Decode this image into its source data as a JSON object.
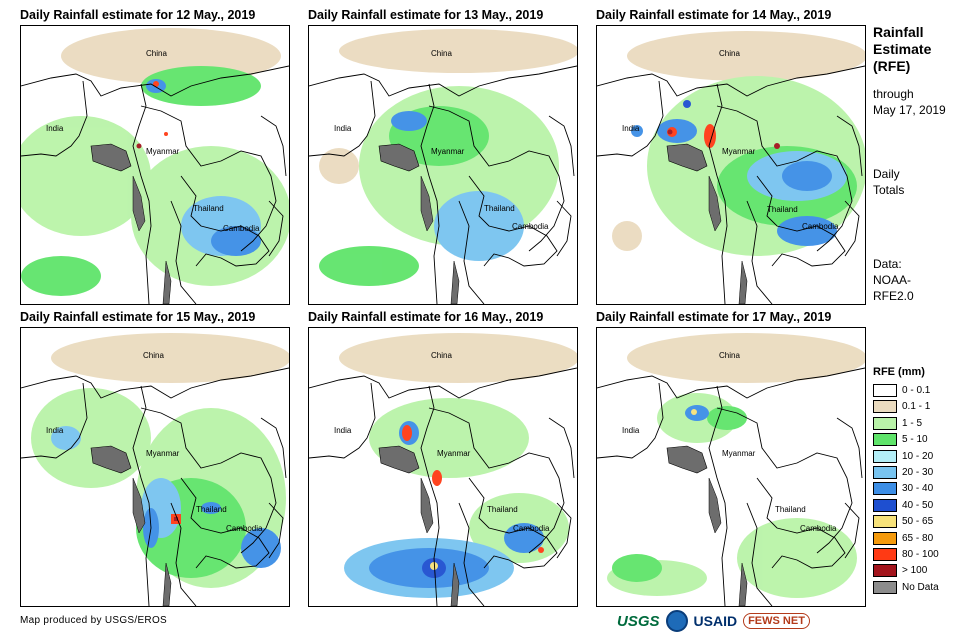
{
  "panels": [
    {
      "title": "Daily Rainfall estimate for 12 May., 2019"
    },
    {
      "title": "Daily Rainfall estimate for 13 May., 2019"
    },
    {
      "title": "Daily Rainfall estimate for 14 May., 2019"
    },
    {
      "title": "Daily Rainfall estimate for 15 May., 2019"
    },
    {
      "title": "Daily Rainfall estimate for 16 May., 2019"
    },
    {
      "title": "Daily Rainfall estimate for 17 May., 2019"
    }
  ],
  "map_labels": {
    "china": "China",
    "india": "India",
    "myanmar": "Myanmar",
    "thailand": "Thailand",
    "cambodia": "Cambodia"
  },
  "sidebar": {
    "title_line1": "Rainfall",
    "title_line2": "Estimate",
    "title_line3": "(RFE)",
    "through_label": "through",
    "through_date": "May 17, 2019",
    "daily_line1": "Daily",
    "daily_line2": "Totals",
    "data_line1": "Data:",
    "data_line2": "NOAA-",
    "data_line3": "RFE2.0"
  },
  "legend": {
    "title": "RFE (mm)",
    "items": [
      {
        "label": "0 - 0.1",
        "color": "#ffffff"
      },
      {
        "label": "0.1 - 1",
        "color": "#eadbbf"
      },
      {
        "label": "1 - 5",
        "color": "#b9f3a8"
      },
      {
        "label": "5 - 10",
        "color": "#5fe46a"
      },
      {
        "label": "10 - 20",
        "color": "#b3eef7"
      },
      {
        "label": "20 - 30",
        "color": "#78c4f0"
      },
      {
        "label": "30 - 40",
        "color": "#3c8ee6"
      },
      {
        "label": "40 - 50",
        "color": "#1e4fd0"
      },
      {
        "label": "50 - 65",
        "color": "#f7e27a"
      },
      {
        "label": "65 - 80",
        "color": "#f59a0c"
      },
      {
        "label": "80 - 100",
        "color": "#ff3a14"
      },
      {
        "label": "> 100",
        "color": "#a3141c"
      },
      {
        "label": "No Data",
        "color": "#8c8c8c"
      }
    ]
  },
  "credit": "Map produced by USGS/EROS",
  "logos": {
    "usgs": "USGS",
    "usaid": "USAID",
    "fews": "FEWS NET"
  }
}
